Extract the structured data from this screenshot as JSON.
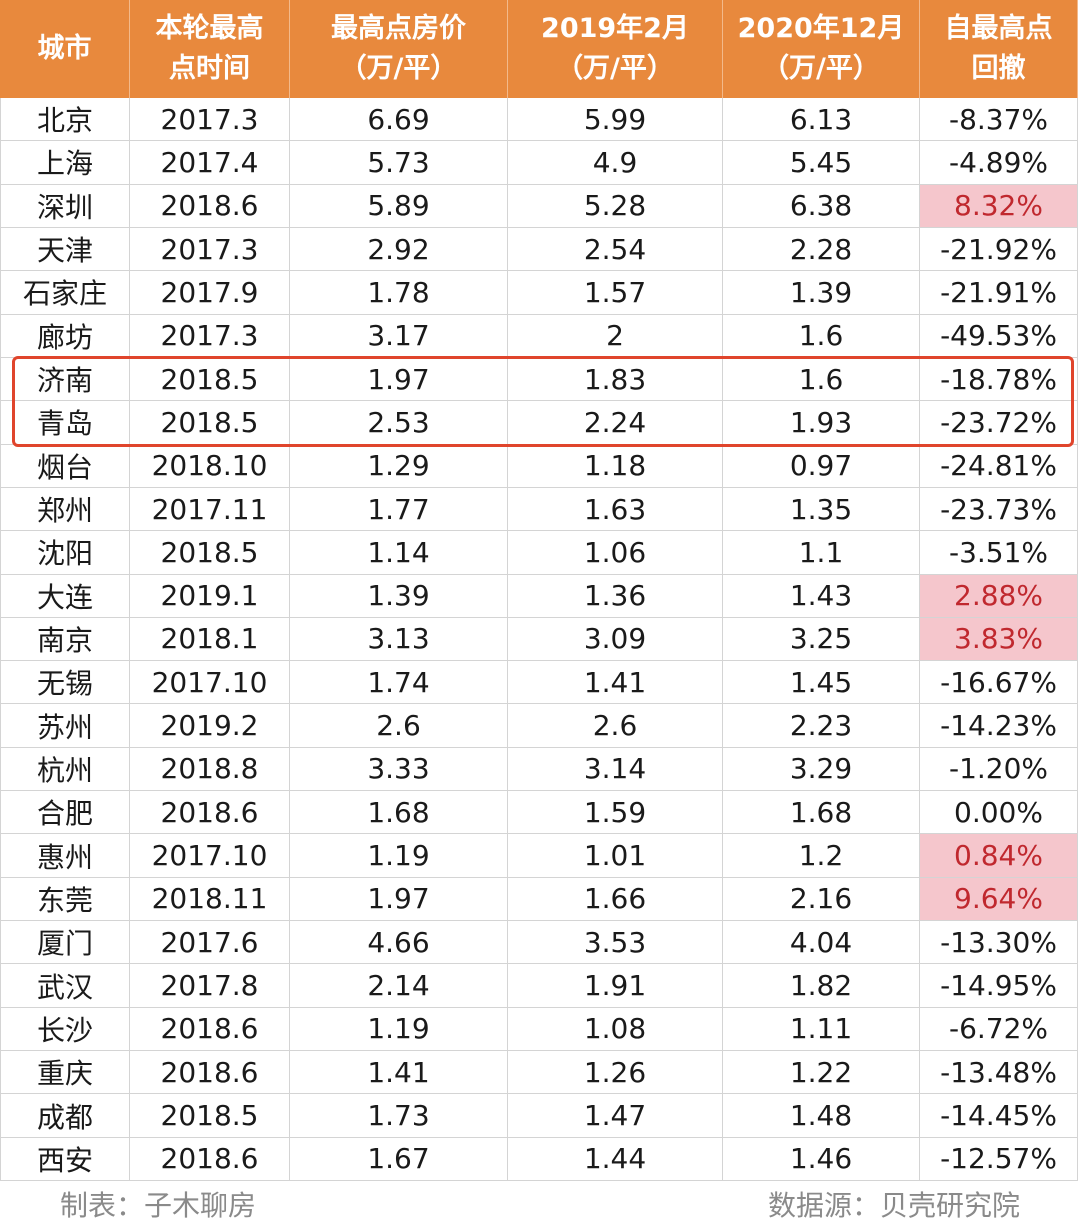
{
  "table": {
    "header": [
      [
        "城市"
      ],
      [
        "本轮最高",
        "点时间"
      ],
      [
        "最高点房价",
        "（万/平）"
      ],
      [
        "2019年2月",
        "（万/平）"
      ],
      [
        "2020年12月",
        "（万/平）"
      ],
      [
        "自最高点",
        "回撤"
      ]
    ],
    "rows": [
      {
        "cells": [
          "北京",
          "2017.3",
          "6.69",
          "5.99",
          "6.13",
          "-8.37%"
        ]
      },
      {
        "cells": [
          "上海",
          "2017.4",
          "5.73",
          "4.9",
          "5.45",
          "-4.89%"
        ]
      },
      {
        "cells": [
          "深圳",
          "2018.6",
          "5.89",
          "5.28",
          "6.38",
          "8.32%"
        ],
        "highlight": true
      },
      {
        "cells": [
          "天津",
          "2017.3",
          "2.92",
          "2.54",
          "2.28",
          "-21.92%"
        ]
      },
      {
        "cells": [
          "石家庄",
          "2017.9",
          "1.78",
          "1.57",
          "1.39",
          "-21.91%"
        ]
      },
      {
        "cells": [
          "廊坊",
          "2017.3",
          "3.17",
          "2",
          "1.6",
          "-49.53%"
        ]
      },
      {
        "cells": [
          "济南",
          "2018.5",
          "1.97",
          "1.83",
          "1.6",
          "-18.78%"
        ],
        "boxed": true
      },
      {
        "cells": [
          "青岛",
          "2018.5",
          "2.53",
          "2.24",
          "1.93",
          "-23.72%"
        ],
        "boxed": true
      },
      {
        "cells": [
          "烟台",
          "2018.10",
          "1.29",
          "1.18",
          "0.97",
          "-24.81%"
        ]
      },
      {
        "cells": [
          "郑州",
          "2017.11",
          "1.77",
          "1.63",
          "1.35",
          "-23.73%"
        ]
      },
      {
        "cells": [
          "沈阳",
          "2018.5",
          "1.14",
          "1.06",
          "1.1",
          "-3.51%"
        ]
      },
      {
        "cells": [
          "大连",
          "2019.1",
          "1.39",
          "1.36",
          "1.43",
          "2.88%"
        ],
        "highlight": true
      },
      {
        "cells": [
          "南京",
          "2018.1",
          "3.13",
          "3.09",
          "3.25",
          "3.83%"
        ],
        "highlight": true
      },
      {
        "cells": [
          "无锡",
          "2017.10",
          "1.74",
          "1.41",
          "1.45",
          "-16.67%"
        ]
      },
      {
        "cells": [
          "苏州",
          "2019.2",
          "2.6",
          "2.6",
          "2.23",
          "-14.23%"
        ]
      },
      {
        "cells": [
          "杭州",
          "2018.8",
          "3.33",
          "3.14",
          "3.29",
          "-1.20%"
        ]
      },
      {
        "cells": [
          "合肥",
          "2018.6",
          "1.68",
          "1.59",
          "1.68",
          "0.00%"
        ]
      },
      {
        "cells": [
          "惠州",
          "2017.10",
          "1.19",
          "1.01",
          "1.2",
          "0.84%"
        ],
        "highlight": true
      },
      {
        "cells": [
          "东莞",
          "2018.11",
          "1.97",
          "1.66",
          "2.16",
          "9.64%"
        ],
        "highlight": true
      },
      {
        "cells": [
          "厦门",
          "2017.6",
          "4.66",
          "3.53",
          "4.04",
          "-13.30%"
        ]
      },
      {
        "cells": [
          "武汉",
          "2017.8",
          "2.14",
          "1.91",
          "1.82",
          "-14.95%"
        ]
      },
      {
        "cells": [
          "长沙",
          "2018.6",
          "1.19",
          "1.08",
          "1.11",
          "-6.72%"
        ]
      },
      {
        "cells": [
          "重庆",
          "2018.6",
          "1.41",
          "1.26",
          "1.22",
          "-13.48%"
        ]
      },
      {
        "cells": [
          "成都",
          "2018.5",
          "1.73",
          "1.47",
          "1.48",
          "-14.45%"
        ]
      },
      {
        "cells": [
          "西安",
          "2018.6",
          "1.67",
          "1.44",
          "1.46",
          "-12.57%"
        ]
      }
    ]
  },
  "footer": {
    "left": "制表：子木聊房",
    "right": "数据源：贝壳研究院"
  }
}
